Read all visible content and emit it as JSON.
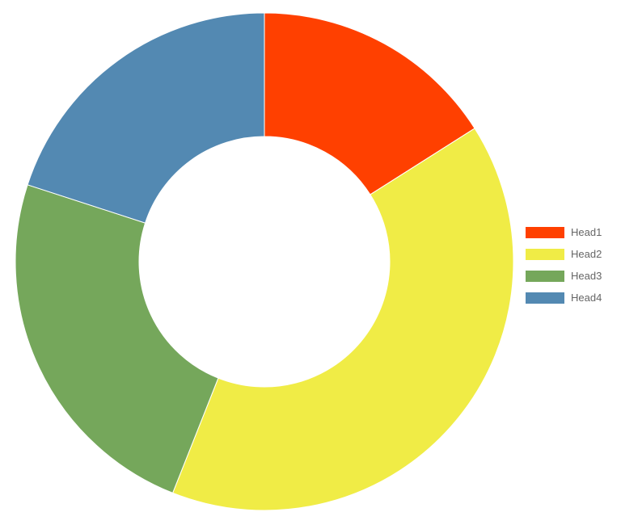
{
  "chart_data": {
    "type": "pie",
    "variant": "donut",
    "title": "",
    "categories": [
      "Head1",
      "Head2",
      "Head3",
      "Head4"
    ],
    "values": [
      16,
      40,
      24,
      20
    ],
    "colors": [
      "#ff4000",
      "#f0ec46",
      "#75a75b",
      "#5389b2"
    ],
    "legend": {
      "position": "right",
      "entries": [
        "Head1",
        "Head2",
        "Head3",
        "Head4"
      ]
    }
  }
}
